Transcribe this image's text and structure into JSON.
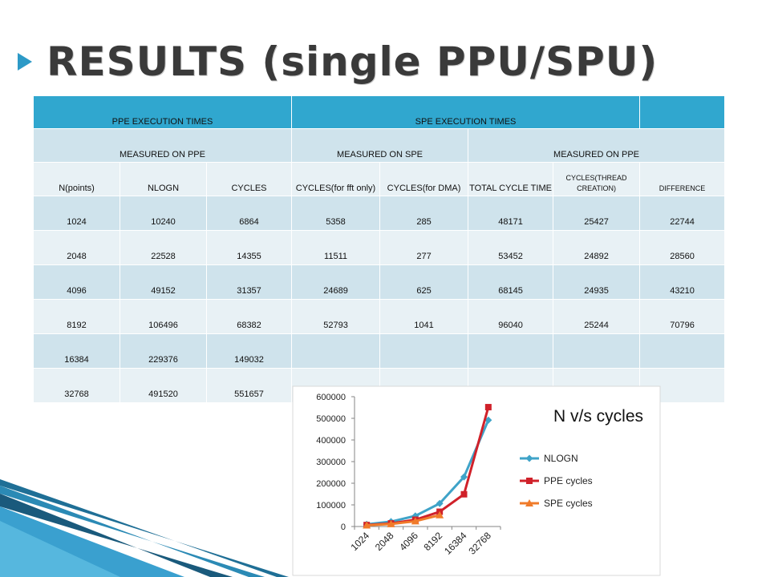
{
  "slide": {
    "title": "RESULTS (single PPU/SPU)"
  },
  "table": {
    "group_headers": {
      "ppe": "PPE EXECUTION TIMES",
      "spe": "SPE EXECUTION TIMES"
    },
    "sub_headers": {
      "measured_ppe": "MEASURED ON PPE",
      "measured_spe": "MEASURED ON SPE",
      "measured_ppe2": "MEASURED ON PPE"
    },
    "columns": [
      "N(points)",
      "NLOGN",
      "CYCLES",
      "CYCLES(for fft only)",
      "CYCLES(for DMA)",
      "TOTAL CYCLE TIME",
      "CYCLES(THREAD CREATION)",
      "DIFFERENCE"
    ],
    "rows": [
      [
        "1024",
        "10240",
        "6864",
        "5358",
        "285",
        "48171",
        "25427",
        "22744"
      ],
      [
        "2048",
        "22528",
        "14355",
        "11511",
        "277",
        "53452",
        "24892",
        "28560"
      ],
      [
        "4096",
        "49152",
        "31357",
        "24689",
        "625",
        "68145",
        "24935",
        "43210"
      ],
      [
        "8192",
        "106496",
        "68382",
        "52793",
        "1041",
        "96040",
        "25244",
        "70796"
      ],
      [
        "16384",
        "229376",
        "149032",
        "",
        "",
        "",
        "",
        ""
      ],
      [
        "32768",
        "491520",
        "551657",
        "",
        "",
        "",
        "",
        ""
      ]
    ]
  },
  "chart_title": "N v/s cycles",
  "chart_data": {
    "type": "line",
    "title": "N v/s cycles",
    "categories": [
      "1024",
      "2048",
      "4096",
      "8192",
      "16384",
      "32768"
    ],
    "series": [
      {
        "name": "NLOGN",
        "values": [
          10240,
          22528,
          49152,
          106496,
          229376,
          491520
        ],
        "color": "#3fa3c8",
        "marker": "diamond"
      },
      {
        "name": "PPE cycles",
        "values": [
          6864,
          14355,
          31357,
          68382,
          149032,
          551657
        ],
        "color": "#d0212a",
        "marker": "square"
      },
      {
        "name": "SPE cycles",
        "values": [
          5358,
          11511,
          24689,
          52793,
          null,
          null
        ],
        "color": "#f07b2a",
        "marker": "triangle"
      }
    ],
    "yticks": [
      "0",
      "100000",
      "200000",
      "300000",
      "400000",
      "500000",
      "600000"
    ],
    "ylim": [
      0,
      600000
    ],
    "grid": false,
    "legend": "right"
  }
}
